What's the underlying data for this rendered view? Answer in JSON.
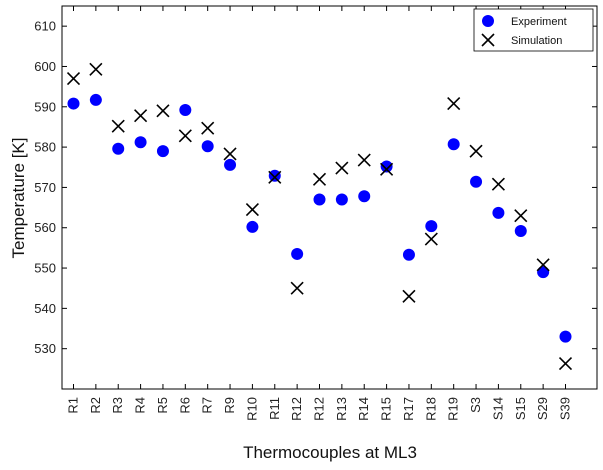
{
  "chart_data": {
    "type": "scatter",
    "title": "",
    "xlabel": "Thermocouples at ML3",
    "ylabel": "Temperature [K]",
    "ylim": [
      520,
      615
    ],
    "yticks": [
      530,
      540,
      550,
      560,
      570,
      580,
      590,
      600,
      610
    ],
    "categories": [
      "R1",
      "R2",
      "R3",
      "R4",
      "R5",
      "R6",
      "R7",
      "R9",
      "R10",
      "R11",
      "R12",
      "R12",
      "R13",
      "R14",
      "R15",
      "R17",
      "R18",
      "R19",
      "S3",
      "S14",
      "S15",
      "S29",
      "S39"
    ],
    "grid": false,
    "legend_position": "top-right",
    "series": [
      {
        "name": "Experiment",
        "marker": "filled-circle",
        "color": "#0000ff",
        "values": [
          590.8,
          591.7,
          579.6,
          581.2,
          579.0,
          589.2,
          580.2,
          575.6,
          560.2,
          572.9,
          553.5,
          567.0,
          567.0,
          567.8,
          575.2,
          553.3,
          560.4,
          580.7,
          571.4,
          563.7,
          559.2,
          549.0,
          533.0
        ]
      },
      {
        "name": "Simulation",
        "marker": "x-cross",
        "color": "#000000",
        "values": [
          597.0,
          599.3,
          585.2,
          587.8,
          589.0,
          582.8,
          584.7,
          578.3,
          564.5,
          572.5,
          545.0,
          572.0,
          574.8,
          576.8,
          574.5,
          543.0,
          557.2,
          590.8,
          579.0,
          570.8,
          563.0,
          550.8,
          526.3
        ]
      }
    ]
  }
}
